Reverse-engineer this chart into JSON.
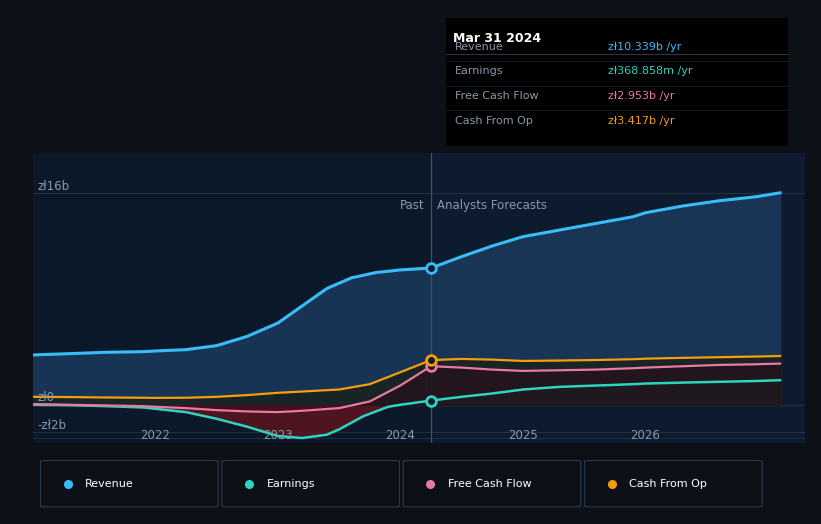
{
  "bg_color": "#0d1117",
  "plot_bg_color": "#0d1b2e",
  "divider_x": 2024.25,
  "past_label": "Past",
  "forecast_label": "Analysts Forecasts",
  "ylabel_top": "zł16b",
  "ylabel_zero": "zł0",
  "ylabel_neg": "-zł2b",
  "x_ticks": [
    2022,
    2023,
    2024,
    2025,
    2026
  ],
  "ylim": [
    -2.8,
    19.0
  ],
  "xlim": [
    2021.0,
    2027.3
  ],
  "tooltip": {
    "title": "Mar 31 2024",
    "rows": [
      {
        "label": "Revenue",
        "value": "zł10.339b /yr",
        "color": "#38bdf8"
      },
      {
        "label": "Earnings",
        "value": "zł368.858m /yr",
        "color": "#2dd4bf"
      },
      {
        "label": "Free Cash Flow",
        "value": "zł2.953b /yr",
        "color": "#e879a0"
      },
      {
        "label": "Cash From Op",
        "value": "zł3.417b /yr",
        "color": "#f59e0b"
      }
    ]
  },
  "series": {
    "revenue": {
      "color": "#38bdf8",
      "x": [
        2021.0,
        2021.3,
        2021.6,
        2021.9,
        2022.0,
        2022.25,
        2022.5,
        2022.75,
        2023.0,
        2023.2,
        2023.4,
        2023.6,
        2023.8,
        2024.0,
        2024.25,
        2024.5,
        2024.75,
        2025.0,
        2025.3,
        2025.6,
        2025.9,
        2026.0,
        2026.3,
        2026.6,
        2026.9,
        2027.1
      ],
      "y": [
        3.8,
        3.9,
        4.0,
        4.05,
        4.1,
        4.2,
        4.5,
        5.2,
        6.2,
        7.5,
        8.8,
        9.6,
        10.0,
        10.2,
        10.339,
        11.2,
        12.0,
        12.7,
        13.2,
        13.7,
        14.2,
        14.5,
        15.0,
        15.4,
        15.7,
        16.0
      ]
    },
    "earnings": {
      "color": "#2dd4bf",
      "x": [
        2021.0,
        2021.3,
        2021.6,
        2021.9,
        2022.0,
        2022.25,
        2022.5,
        2022.75,
        2023.0,
        2023.2,
        2023.4,
        2023.5,
        2023.7,
        2023.9,
        2024.0,
        2024.25,
        2024.5,
        2024.75,
        2025.0,
        2025.3,
        2025.6,
        2025.9,
        2026.0,
        2026.3,
        2026.6,
        2026.9,
        2027.1
      ],
      "y": [
        0.05,
        0.02,
        -0.05,
        -0.15,
        -0.25,
        -0.5,
        -1.0,
        -1.6,
        -2.3,
        -2.45,
        -2.2,
        -1.8,
        -0.8,
        -0.1,
        0.05,
        0.369,
        0.65,
        0.9,
        1.2,
        1.4,
        1.5,
        1.6,
        1.65,
        1.72,
        1.78,
        1.84,
        1.9
      ]
    },
    "free_cash_flow": {
      "color": "#e879a0",
      "x": [
        2021.0,
        2021.3,
        2021.6,
        2021.9,
        2022.0,
        2022.25,
        2022.5,
        2022.75,
        2023.0,
        2023.2,
        2023.5,
        2023.75,
        2024.0,
        2024.25,
        2024.5,
        2024.75,
        2025.0,
        2025.3,
        2025.6,
        2025.9,
        2026.0,
        2026.3,
        2026.6,
        2026.9,
        2027.1
      ],
      "y": [
        0.1,
        0.05,
        0.0,
        -0.05,
        -0.1,
        -0.2,
        -0.35,
        -0.45,
        -0.5,
        -0.4,
        -0.2,
        0.3,
        1.5,
        2.953,
        2.85,
        2.7,
        2.6,
        2.65,
        2.7,
        2.8,
        2.85,
        2.95,
        3.05,
        3.1,
        3.15
      ]
    },
    "cash_from_op": {
      "color": "#f59e0b",
      "x": [
        2021.0,
        2021.3,
        2021.6,
        2021.9,
        2022.0,
        2022.25,
        2022.5,
        2022.75,
        2023.0,
        2023.2,
        2023.5,
        2023.75,
        2024.0,
        2024.25,
        2024.5,
        2024.75,
        2025.0,
        2025.3,
        2025.6,
        2025.9,
        2026.0,
        2026.3,
        2026.6,
        2026.9,
        2027.1
      ],
      "y": [
        0.65,
        0.63,
        0.6,
        0.58,
        0.57,
        0.58,
        0.65,
        0.78,
        0.95,
        1.05,
        1.2,
        1.6,
        2.5,
        3.417,
        3.5,
        3.45,
        3.35,
        3.38,
        3.42,
        3.48,
        3.52,
        3.58,
        3.63,
        3.68,
        3.72
      ]
    }
  },
  "legend": [
    {
      "label": "Revenue",
      "color": "#38bdf8"
    },
    {
      "label": "Earnings",
      "color": "#2dd4bf"
    },
    {
      "label": "Free Cash Flow",
      "color": "#e879a0"
    },
    {
      "label": "Cash From Op",
      "color": "#f59e0b"
    }
  ]
}
